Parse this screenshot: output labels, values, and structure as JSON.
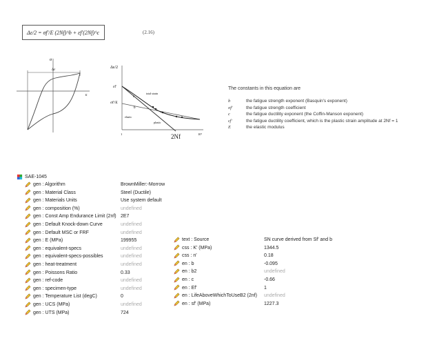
{
  "equation": {
    "formula": "Δε/2 = σf'/E (2Nf)^b + εf'(2Nf)^c",
    "number": "(2.16)"
  },
  "hysteresis_plot": {
    "y_label": "σ",
    "x_label": "ε",
    "range_label": "Δε"
  },
  "strain_life_plot": {
    "y_label": "Δε/2",
    "ef_label": "εf'",
    "sf_label": "σf'/E",
    "c_label": "c",
    "b_label": "b",
    "total_label": "total strain",
    "elastic_label": "elastic",
    "plastic_label": "plastic",
    "x_start": "1",
    "x_end": "10⁷",
    "x_label": "2Nf"
  },
  "constants": {
    "intro": "The constants in this equation are",
    "items": [
      {
        "symbol": "b",
        "desc": "the fatigue strength exponent (Basquin's exponent)"
      },
      {
        "symbol": "σf'",
        "desc": "the fatigue strength coefficient"
      },
      {
        "symbol": "c",
        "desc": "the fatigue ductility exponent (the Coffin-Manson exponent)"
      },
      {
        "symbol": "εf'",
        "desc": "the fatigue ductility coefficient, which is the plastic strain amplitude at 2Nf = 1"
      },
      {
        "symbol": "E",
        "desc": "the elastic modulus"
      }
    ]
  },
  "material": {
    "name": "SAE-1045",
    "left": [
      {
        "label": "gen : Algorithm",
        "value": "BrownMiller:-Morrow",
        "defined": true
      },
      {
        "label": "gen : Material Class",
        "value": "Steel (Ductile)",
        "defined": true
      },
      {
        "label": "gen : Materials Units",
        "value": "Use system default",
        "defined": true
      },
      {
        "label": "gen : composition (%)",
        "value": "undefined",
        "defined": false
      },
      {
        "label": "gen : Const Amp Endurance Limit (2nf)",
        "value": "2E7",
        "defined": true
      },
      {
        "label": "gen : Default Knock-down Curve",
        "value": "undefined",
        "defined": false
      },
      {
        "label": "gen : Default MSC or FRF",
        "value": "undefined",
        "defined": false
      },
      {
        "label": "gen : E (MPa)",
        "value": "199955",
        "defined": true
      },
      {
        "label": "gen : equivalent-specs",
        "value": "undefined",
        "defined": false
      },
      {
        "label": "gen : equivalent-specs-possibles",
        "value": "undefined",
        "defined": false
      },
      {
        "label": "gen : heat-treatment",
        "value": "undefined",
        "defined": false
      },
      {
        "label": "gen : Poissons Ratio",
        "value": "0.33",
        "defined": true
      },
      {
        "label": "gen : ref-code",
        "value": "undefined",
        "defined": false
      },
      {
        "label": "gen : specimen-type",
        "value": "undefined",
        "defined": false
      },
      {
        "label": "gen : Temperature List (degC)",
        "value": "0",
        "defined": true
      },
      {
        "label": "gen : UCS (MPa)",
        "value": "undefined",
        "defined": false
      },
      {
        "label": "gen : UTS (MPa)",
        "value": "724",
        "defined": true
      }
    ],
    "right": [
      {
        "label": "text : Source",
        "value": "SN curve derived from Sf' and b",
        "defined": true
      },
      {
        "label": "css : K' (MPa)",
        "value": "1344.5",
        "defined": true
      },
      {
        "label": "css : n'",
        "value": "0.18",
        "defined": true
      },
      {
        "label": "en : b",
        "value": "-0.095",
        "defined": true
      },
      {
        "label": "en : b2",
        "value": "undefined",
        "defined": false
      },
      {
        "label": "en : c",
        "value": "-0.66",
        "defined": true
      },
      {
        "label": "en : Ef'",
        "value": "1",
        "defined": true
      },
      {
        "label": "en : LifeAboveWhichToUseB2 (2nf)",
        "value": "undefined",
        "defined": false
      },
      {
        "label": "en : sf' (MPa)",
        "value": "1227.3",
        "defined": true
      }
    ]
  }
}
